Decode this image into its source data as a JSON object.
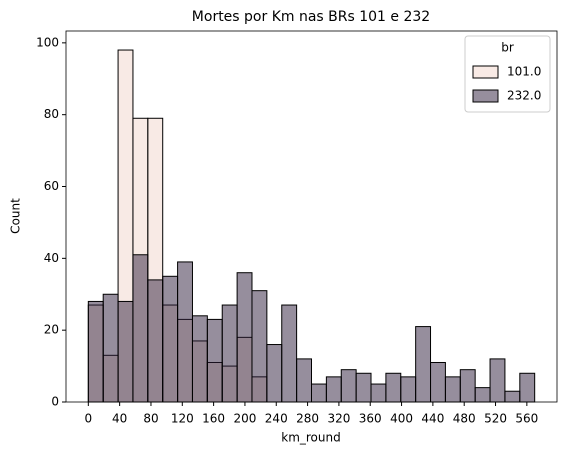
{
  "chart_data": {
    "type": "histogram",
    "title": "Mortes por Km nas BRs 101 e 232",
    "xlabel": "km_round",
    "ylabel": "Count",
    "bins": [
      0,
      19,
      38,
      57,
      76,
      95,
      114,
      133,
      152,
      171,
      190,
      209,
      228,
      247,
      266,
      285,
      304,
      323,
      342,
      361,
      380,
      399,
      418,
      437,
      456,
      475,
      494,
      513,
      532,
      551,
      570
    ],
    "series": [
      {
        "name": "101.0",
        "color": "#f1d6cc",
        "values": [
          27,
          13,
          98,
          79,
          79,
          27,
          23,
          17,
          11,
          10,
          18,
          7,
          0,
          0,
          0,
          0,
          0,
          0,
          0,
          0,
          0,
          0,
          0,
          0,
          0,
          0,
          0,
          0,
          0,
          0
        ]
      },
      {
        "name": "232.0",
        "color": "#2e1e3b",
        "values": [
          28,
          30,
          28,
          41,
          34,
          35,
          39,
          24,
          23,
          27,
          36,
          31,
          16,
          27,
          12,
          5,
          7,
          9,
          8,
          5,
          8,
          7,
          21,
          11,
          7,
          9,
          4,
          12,
          3,
          8
        ]
      }
    ],
    "legend_title": "br",
    "legend": "upper right",
    "xlim": [
      -28.5,
      598.5
    ],
    "ylim": [
      0,
      103.3
    ],
    "xticks": [
      0,
      40,
      80,
      120,
      160,
      200,
      240,
      280,
      320,
      360,
      400,
      440,
      480,
      520,
      560
    ],
    "yticks": [
      0,
      20,
      40,
      60,
      80,
      100
    ]
  }
}
